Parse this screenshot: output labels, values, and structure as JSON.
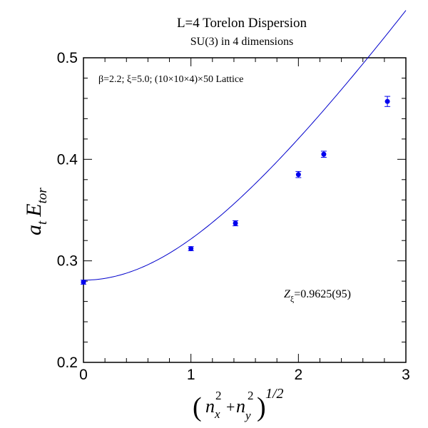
{
  "chart_data": {
    "type": "scatter",
    "title": "L=4 Torelon Dispersion",
    "subtitle": "SU(3) in 4 dimensions",
    "annotation": "β=2.2;  ξ=5.0; (10×10×4)×50 Lattice",
    "z_label": "Z",
    "z_subscript": "ξ",
    "z_value": "=0.9625(95)",
    "xlabel": {
      "open": "(",
      "n_x": "n",
      "x_sub": "x",
      "sup2": "2",
      "plus": "+",
      "n_y": "n",
      "y_sub": "y",
      "sup2b": "2",
      "close": ")",
      "power": "1/2"
    },
    "ylabel": {
      "a": "a",
      "t_sub": "t",
      "E": "E",
      "tor_sub": "tor"
    },
    "xlim": [
      0,
      3
    ],
    "ylim": [
      0.2,
      0.5
    ],
    "x_ticks": [
      0,
      1,
      2,
      3
    ],
    "y_ticks": [
      0.2,
      0.3,
      0.4,
      0.5
    ],
    "x_tick_labels": [
      "0",
      "1",
      "2",
      "3"
    ],
    "y_tick_labels": [
      "0.2",
      "0.3",
      "0.4",
      "0.5"
    ],
    "x_minor_step": 0.2,
    "y_minor_step": 0.02,
    "grid": false,
    "series": [
      {
        "points": [
          {
            "x": 0.0,
            "y": 0.279,
            "err": 0.002
          },
          {
            "x": 1.0,
            "y": 0.312,
            "err": 0.002
          },
          {
            "x": 1.414,
            "y": 0.337,
            "err": 0.0025
          },
          {
            "x": 2.0,
            "y": 0.385,
            "err": 0.003
          },
          {
            "x": 2.236,
            "y": 0.405,
            "err": 0.003
          },
          {
            "x": 2.828,
            "y": 0.457,
            "err": 0.005
          }
        ]
      }
    ],
    "fit_curve": {
      "E0": 0.281,
      "scale": 0.1563
    },
    "colors": {
      "points": "#0000ee",
      "fit_line": "#0000cc",
      "axes": "#000000"
    }
  }
}
